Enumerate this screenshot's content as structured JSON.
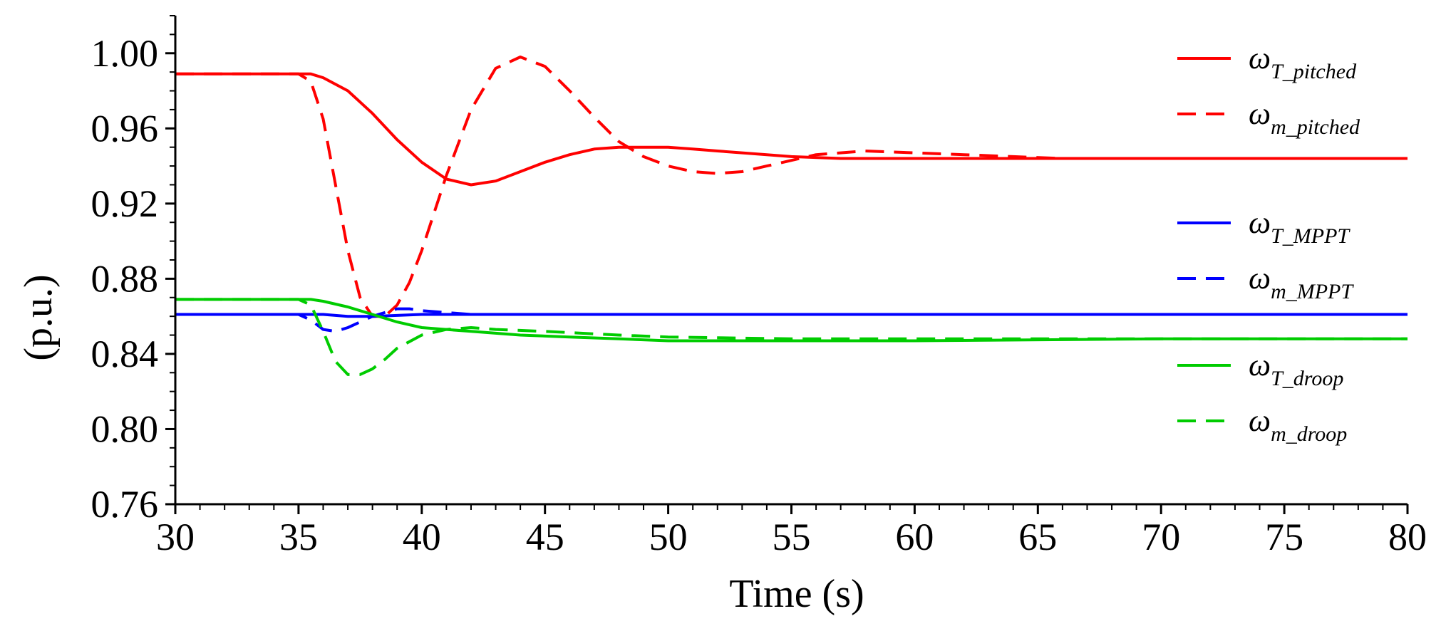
{
  "chart_data": {
    "type": "line",
    "title": "",
    "xlabel": "Time (s)",
    "ylabel": "(p.u.)",
    "xlim": [
      30,
      80
    ],
    "ylim": [
      0.76,
      1.02
    ],
    "xticks": [
      30,
      35,
      40,
      45,
      50,
      55,
      60,
      65,
      70,
      75,
      80
    ],
    "yticks": [
      0.76,
      0.8,
      0.84,
      0.88,
      0.92,
      0.96,
      1.0
    ],
    "xtick_labels": [
      "30",
      "35",
      "40",
      "45",
      "50",
      "55",
      "60",
      "65",
      "70",
      "75",
      "80"
    ],
    "ytick_labels": [
      "0.76",
      "0.80",
      "0.84",
      "0.88",
      "0.92",
      "0.96",
      "1.00"
    ],
    "grid": false,
    "legend_position": "right",
    "series": [
      {
        "name": "ω_T_pitched",
        "legend_symbol": "ω",
        "legend_sub": "T_pitched",
        "color": "#ff0000",
        "style": "solid",
        "x": [
          30,
          35,
          35.5,
          36,
          37,
          38,
          39,
          40,
          41,
          42,
          43,
          44,
          45,
          46,
          47,
          48,
          49,
          50,
          51,
          52,
          53,
          54,
          55,
          57,
          60,
          65,
          70,
          75,
          80
        ],
        "y": [
          0.989,
          0.989,
          0.989,
          0.987,
          0.98,
          0.968,
          0.954,
          0.942,
          0.933,
          0.93,
          0.932,
          0.937,
          0.942,
          0.946,
          0.949,
          0.95,
          0.95,
          0.95,
          0.949,
          0.948,
          0.947,
          0.946,
          0.945,
          0.944,
          0.944,
          0.944,
          0.944,
          0.944,
          0.944
        ]
      },
      {
        "name": "ω_m_pitched",
        "legend_symbol": "ω",
        "legend_sub": "m_pitched",
        "color": "#ff0000",
        "style": "dashed",
        "x": [
          30,
          35,
          35.5,
          36,
          36.5,
          37,
          37.5,
          38,
          38.5,
          39,
          39.5,
          40,
          41,
          42,
          43,
          44,
          45,
          46,
          47,
          48,
          49,
          50,
          51,
          52,
          53,
          54,
          55,
          56,
          58,
          60,
          62,
          64,
          66,
          70,
          75,
          80
        ],
        "y": [
          0.989,
          0.989,
          0.985,
          0.965,
          0.93,
          0.895,
          0.87,
          0.86,
          0.86,
          0.866,
          0.878,
          0.895,
          0.935,
          0.97,
          0.992,
          0.998,
          0.993,
          0.98,
          0.966,
          0.953,
          0.945,
          0.94,
          0.937,
          0.936,
          0.937,
          0.94,
          0.943,
          0.946,
          0.948,
          0.947,
          0.946,
          0.945,
          0.944,
          0.944,
          0.944,
          0.944
        ]
      },
      {
        "name": "ω_T_MPPT",
        "legend_symbol": "ω",
        "legend_sub": "T_MPPT",
        "color": "#0000ff",
        "style": "solid",
        "x": [
          30,
          35,
          36,
          37,
          38,
          40,
          45,
          50,
          60,
          70,
          80
        ],
        "y": [
          0.861,
          0.861,
          0.861,
          0.86,
          0.86,
          0.861,
          0.861,
          0.861,
          0.861,
          0.861,
          0.861
        ]
      },
      {
        "name": "ω_m_MPPT",
        "legend_symbol": "ω",
        "legend_sub": "m_MPPT",
        "color": "#0000ff",
        "style": "dashed",
        "x": [
          30,
          35,
          35.5,
          36,
          36.5,
          37,
          37.5,
          38,
          38.5,
          39,
          39.5,
          40,
          41,
          42,
          45,
          50,
          60,
          70,
          80
        ],
        "y": [
          0.861,
          0.861,
          0.858,
          0.853,
          0.852,
          0.854,
          0.857,
          0.86,
          0.862,
          0.864,
          0.864,
          0.863,
          0.862,
          0.861,
          0.861,
          0.861,
          0.861,
          0.861,
          0.861
        ]
      },
      {
        "name": "ω_T_droop",
        "legend_symbol": "ω",
        "legend_sub": "T_droop",
        "color": "#00cc00",
        "style": "solid",
        "x": [
          30,
          35,
          35.5,
          36,
          37,
          38,
          39,
          40,
          42,
          44,
          46,
          48,
          50,
          55,
          60,
          70,
          80
        ],
        "y": [
          0.869,
          0.869,
          0.869,
          0.868,
          0.865,
          0.861,
          0.857,
          0.854,
          0.852,
          0.85,
          0.849,
          0.848,
          0.847,
          0.847,
          0.847,
          0.848,
          0.848
        ]
      },
      {
        "name": "ω_m_droop",
        "legend_symbol": "ω",
        "legend_sub": "m_droop",
        "color": "#00cc00",
        "style": "dashed",
        "x": [
          30,
          35,
          35.5,
          36,
          36.5,
          37,
          37.5,
          38,
          38.5,
          39,
          40,
          41,
          42,
          43,
          45,
          48,
          50,
          55,
          60,
          70,
          80
        ],
        "y": [
          0.869,
          0.869,
          0.866,
          0.852,
          0.836,
          0.829,
          0.829,
          0.832,
          0.837,
          0.843,
          0.85,
          0.853,
          0.854,
          0.853,
          0.852,
          0.85,
          0.849,
          0.848,
          0.848,
          0.848,
          0.848
        ]
      }
    ]
  }
}
